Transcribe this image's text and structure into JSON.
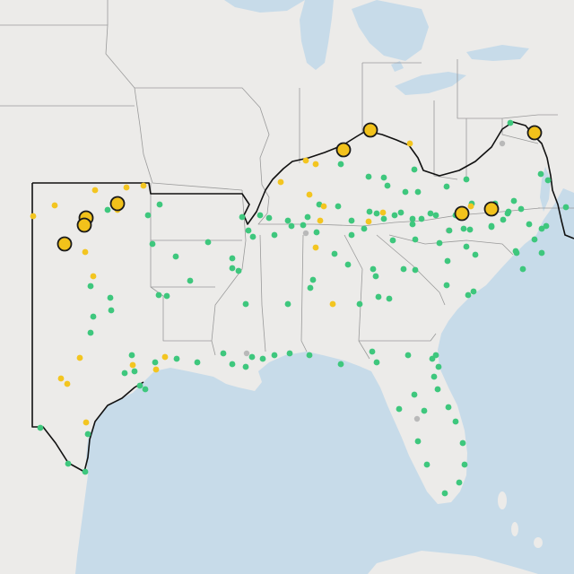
{
  "map": {
    "colors": {
      "land": "#ecebe9",
      "water": "#c7dbe9",
      "state_border": "#9a9a9a",
      "region_border": "#111111",
      "marker_green": "#3ec77d",
      "marker_yellow": "#f3c520",
      "marker_gray": "#b9b9b9",
      "marker_large_fill": "#f2c21b",
      "marker_large_stroke": "#1a1a1a"
    },
    "marker_categories": [
      "green",
      "yellow",
      "gray",
      "large-yellow"
    ]
  }
}
